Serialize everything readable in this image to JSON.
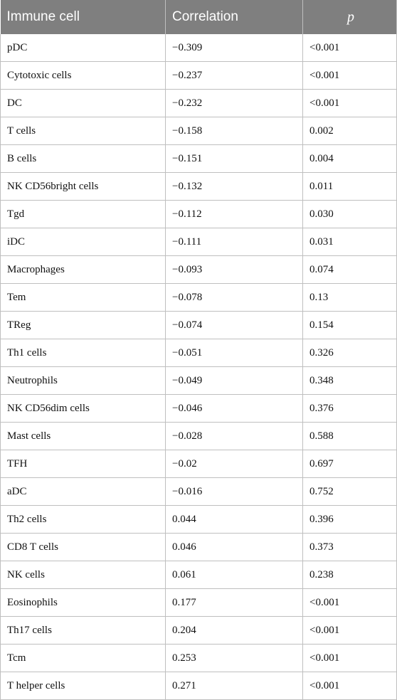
{
  "table": {
    "headers": [
      "Immune cell",
      "Correlation",
      "p"
    ],
    "rows": [
      [
        "pDC",
        "−0.309",
        "<0.001"
      ],
      [
        "Cytotoxic cells",
        "−0.237",
        "<0.001"
      ],
      [
        "DC",
        "−0.232",
        "<0.001"
      ],
      [
        "T cells",
        "−0.158",
        "0.002"
      ],
      [
        "B cells",
        "−0.151",
        "0.004"
      ],
      [
        "NK CD56bright cells",
        "−0.132",
        "0.011"
      ],
      [
        "Tgd",
        "−0.112",
        "0.030"
      ],
      [
        "iDC",
        "−0.111",
        "0.031"
      ],
      [
        "Macrophages",
        "−0.093",
        "0.074"
      ],
      [
        "Tem",
        "−0.078",
        "0.13"
      ],
      [
        "TReg",
        "−0.074",
        "0.154"
      ],
      [
        "Th1 cells",
        "−0.051",
        "0.326"
      ],
      [
        "Neutrophils",
        "−0.049",
        "0.348"
      ],
      [
        "NK CD56dim cells",
        "−0.046",
        "0.376"
      ],
      [
        "Mast cells",
        "−0.028",
        "0.588"
      ],
      [
        "TFH",
        "−0.02",
        "0.697"
      ],
      [
        "aDC",
        "−0.016",
        "0.752"
      ],
      [
        "Th2 cells",
        "0.044",
        "0.396"
      ],
      [
        "CD8 T cells",
        "0.046",
        "0.373"
      ],
      [
        "NK cells",
        "0.061",
        "0.238"
      ],
      [
        "Eosinophils",
        "0.177",
        "<0.001"
      ],
      [
        "Th17 cells",
        "0.204",
        "<0.001"
      ],
      [
        "Tcm",
        "0.253",
        "<0.001"
      ],
      [
        "T helper cells",
        "0.271",
        "<0.001"
      ]
    ]
  },
  "colors": {
    "header_background": "#7f7f7f",
    "header_text": "#ffffff",
    "grid_line": "#bfbfbf"
  }
}
